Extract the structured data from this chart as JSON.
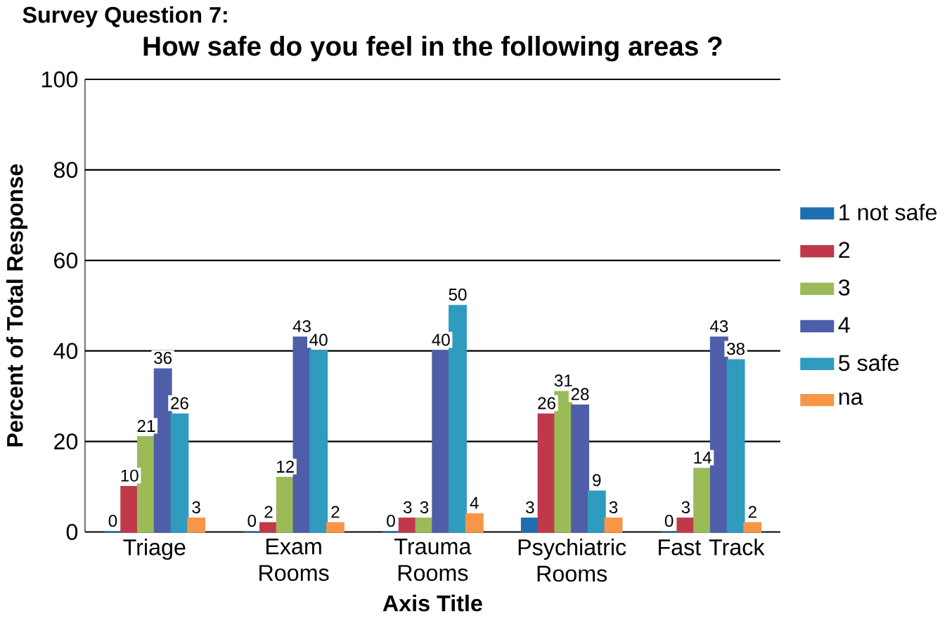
{
  "chart_data": {
    "type": "bar",
    "title": "How safe do you feel in the following areas ?",
    "xlabel": "Axis Title",
    "ylabel": "Percent of Total Response",
    "annotations": [
      "Survey Question 7:"
    ],
    "categories": [
      "Triage",
      "Exam Rooms",
      "Trauma Rooms",
      "Psychiatric Rooms",
      "Fast Track"
    ],
    "series": [
      {
        "name": "1 not safe",
        "color": "#1f6fb0",
        "values": [
          0,
          0,
          0,
          3,
          0
        ]
      },
      {
        "name": "2",
        "color": "#c0394b",
        "values": [
          10,
          2,
          3,
          26,
          3
        ]
      },
      {
        "name": "3",
        "color": "#9bbb59",
        "values": [
          21,
          12,
          3,
          31,
          14
        ]
      },
      {
        "name": "4",
        "color": "#4f5ea8",
        "values": [
          36,
          43,
          40,
          28,
          43
        ]
      },
      {
        "name": "5 safe",
        "color": "#2e9bbf",
        "values": [
          26,
          40,
          50,
          9,
          38
        ]
      },
      {
        "name": "na",
        "color": "#f79646",
        "values": [
          3,
          2,
          4,
          3,
          2
        ]
      }
    ],
    "ylim": [
      0,
      100
    ],
    "yticks": [
      0,
      20,
      40,
      60,
      80,
      100
    ],
    "grid": "y",
    "legend": "right",
    "data_labels": true
  }
}
